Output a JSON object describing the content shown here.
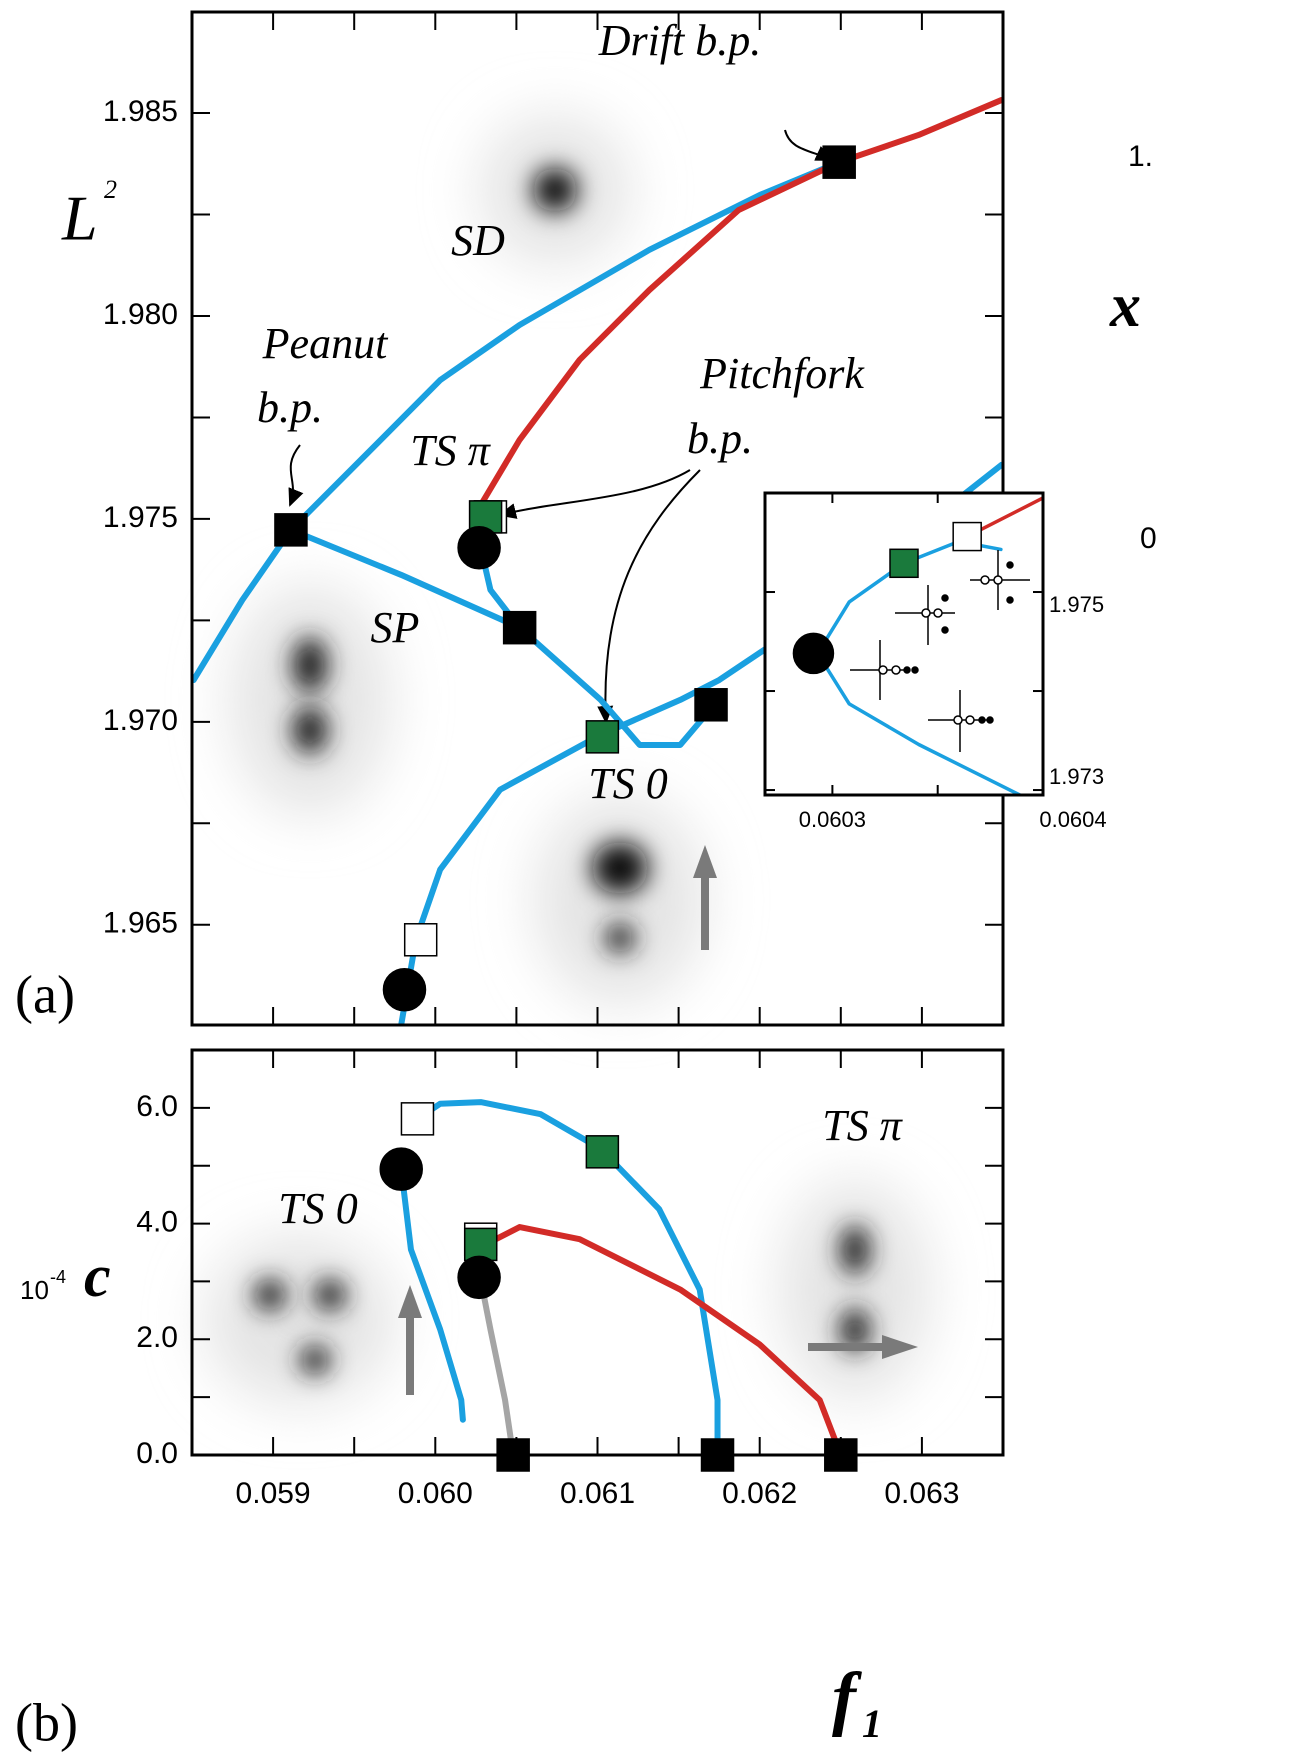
{
  "chart_data": [
    {
      "type": "line",
      "xlim": [
        0.0585,
        0.0635
      ],
      "ylim": [
        1.96253,
        1.98749
      ],
      "yticks": [
        1.985,
        {
          "value": 1.98,
          "label": "1.980"
        },
        1.975,
        {
          "value": 1.97,
          "label": "1.970"
        },
        1.965
      ],
      "ylabel": {
        "symbol": "L",
        "exp": "2"
      },
      "series": [
        {
          "color": "#1aa0e0",
          "x": [
            0.05851,
            0.05881,
            0.05911,
            0.05954,
            0.06003,
            0.06052,
            0.06132,
            0.062,
            0.06249
          ],
          "values": [
            1.97103,
            1.973,
            1.97473,
            1.97645,
            1.97842,
            1.97978,
            1.98163,
            1.98298,
            1.98379
          ]
        },
        {
          "color": "#d22b27",
          "x": [
            0.06028,
            0.06052,
            0.06089,
            0.06132,
            0.06187,
            0.06249,
            0.06298,
            0.06349
          ],
          "values": [
            1.97534,
            1.97695,
            1.97892,
            1.98064,
            1.98261,
            1.98379,
            1.98446,
            1.98532
          ]
        },
        {
          "color": "#1aa0e0",
          "x": [
            0.06028,
            0.06034,
            0.06052
          ],
          "values": [
            1.97429,
            1.97325,
            1.97232
          ]
        },
        {
          "color": "#1aa0e0",
          "x": [
            0.05911,
            0.05979,
            0.06052,
            0.06102,
            0.06126,
            0.06151,
            0.06172
          ],
          "values": [
            1.97473,
            1.97362,
            1.97232,
            1.97054,
            1.96943,
            1.96943,
            1.97042
          ]
        },
        {
          "color": "#1aa0e0",
          "x": [
            0.05979,
            0.05988,
            0.06003,
            0.0604,
            0.06102,
            0.06151,
            0.06175,
            0.06212,
            0.06349
          ],
          "values": [
            1.96254,
            1.96463,
            1.96636,
            1.96833,
            1.96968,
            1.97054,
            1.97103,
            1.97202,
            1.97633
          ]
        }
      ],
      "markers": [
        {
          "shape": "square",
          "color": "#000000",
          "x": 0.06249,
          "y": 1.98379
        },
        {
          "shape": "square",
          "color": "#000000",
          "x": 0.05911,
          "y": 1.97473
        },
        {
          "shape": "square",
          "color": "#000000",
          "x": 0.06052,
          "y": 1.97232
        },
        {
          "shape": "square",
          "color": "#000000",
          "x": 0.0617,
          "y": 1.97042
        },
        {
          "shape": "square",
          "color": "#ffffff",
          "x": 0.06034,
          "y": 1.97505
        },
        {
          "shape": "square",
          "color": "#1a7a3c",
          "x": 0.06031,
          "y": 1.97505
        },
        {
          "shape": "square",
          "color": "#1a7a3c",
          "x": 0.06103,
          "y": 1.96963
        },
        {
          "shape": "square",
          "color": "#ffffff",
          "x": 0.05991,
          "y": 1.96463
        },
        {
          "shape": "circle",
          "color": "#000000",
          "x": 0.06027,
          "y": 1.97429
        },
        {
          "shape": "circle",
          "color": "#000000",
          "x": 0.05981,
          "y": 1.9634
        }
      ],
      "annotations": [
        "Drift b.p.",
        "Peanut",
        "b.p.",
        "Pitchfork",
        "b.p.",
        "TS π",
        "SD",
        "SP",
        "TS 0"
      ]
    },
    {
      "type": "line",
      "xlim": [
        0.060268,
        0.0604
      ],
      "ylim": [
        1.97295,
        1.976
      ],
      "xticks": [
        0.0603,
        0.0604
      ],
      "yticks": [
        1.975,
        1.973
      ],
      "series": [
        {
          "color": "#1aa0e0",
          "x": [
            0.06038,
            0.06036,
            0.060334,
            0.060308,
            0.060293,
            0.060308,
            0.060341,
            0.060389
          ],
          "values": [
            1.97543,
            1.97551,
            1.97529,
            1.9749,
            1.97438,
            1.97387,
            1.97346,
            1.97295
          ]
        },
        {
          "color": "#d22b27",
          "x": [
            0.060364,
            0.0604
          ],
          "values": [
            1.97556,
            1.97595
          ]
        }
      ],
      "markers": [
        {
          "shape": "square",
          "color": "#ffffff",
          "x": 0.060364,
          "y": 1.97556
        },
        {
          "shape": "square",
          "color": "#1a7a3c",
          "x": 0.060334,
          "y": 1.97529
        },
        {
          "shape": "circle",
          "color": "#000000",
          "x": 0.060291,
          "y": 1.97438
        }
      ]
    },
    {
      "type": "line",
      "xlim": [
        0.0585,
        0.0635
      ],
      "ylim": [
        0,
        7
      ],
      "xticks": [
        0.059,
        {
          "value": 0.06,
          "label": "0.060"
        },
        0.061,
        0.062,
        0.063
      ],
      "yticks": [
        {
          "value": 0,
          "label": "0.0"
        },
        {
          "value": 2,
          "label": "2.0"
        },
        {
          "value": 4,
          "label": "4.0"
        },
        {
          "value": 6,
          "label": "6.0"
        }
      ],
      "xlabel": {
        "symbol": "f",
        "sub": "1"
      },
      "ylabel": {
        "prefix": "10",
        "exp": "-4",
        "symbol": "c"
      },
      "series": [
        {
          "color": "#1aa0e0",
          "x": [
            0.05989,
            0.06003,
            0.06028,
            0.06065,
            0.06102,
            0.06138,
            0.06163,
            0.06174,
            0.06174
          ],
          "values": [
            5.81,
            6.07,
            6.1,
            5.89,
            5.29,
            4.25,
            2.86,
            0.95,
            0
          ]
        },
        {
          "color": "#1aa0e0",
          "x": [
            0.05979,
            0.05985,
            0.06003,
            0.06016,
            0.06017
          ],
          "values": [
            4.94,
            3.55,
            2.17,
            0.95,
            0.61
          ]
        },
        {
          "color": "#a5a5a5",
          "x": [
            0.06028,
            0.06034,
            0.06043,
            0.06048
          ],
          "values": [
            3.03,
            2.17,
            0.95,
            0
          ]
        },
        {
          "color": "#d22b27",
          "x": [
            0.06031,
            0.06052,
            0.06089,
            0.06151,
            0.062,
            0.06237,
            0.0625
          ],
          "values": [
            3.64,
            3.94,
            3.73,
            2.86,
            1.91,
            0.95,
            0
          ]
        }
      ],
      "markers": [
        {
          "shape": "square",
          "color": "#ffffff",
          "x": 0.05989,
          "y": 5.81
        },
        {
          "shape": "circle",
          "color": "#000000",
          "x": 0.05979,
          "y": 4.94
        },
        {
          "shape": "square",
          "color": "#1a7a3c",
          "x": 0.06103,
          "y": 5.24
        },
        {
          "shape": "square",
          "color": "#ffffff",
          "x": 0.06028,
          "y": 3.73
        },
        {
          "shape": "square",
          "color": "#1a7a3c",
          "x": 0.06028,
          "y": 3.64
        },
        {
          "shape": "circle",
          "color": "#000000",
          "x": 0.06027,
          "y": 3.07
        },
        {
          "shape": "square",
          "color": "#000000",
          "x": 0.06048,
          "y": 0
        },
        {
          "shape": "square",
          "color": "#000000",
          "x": 0.06174,
          "y": 0
        },
        {
          "shape": "square",
          "color": "#000000",
          "x": 0.0625,
          "y": 0
        }
      ],
      "annotations": [
        "TS 0",
        "TS π"
      ]
    }
  ],
  "panel_labels": [
    "(a)",
    "(b)"
  ],
  "cropped_text": [
    "1.",
    "x",
    "0"
  ]
}
